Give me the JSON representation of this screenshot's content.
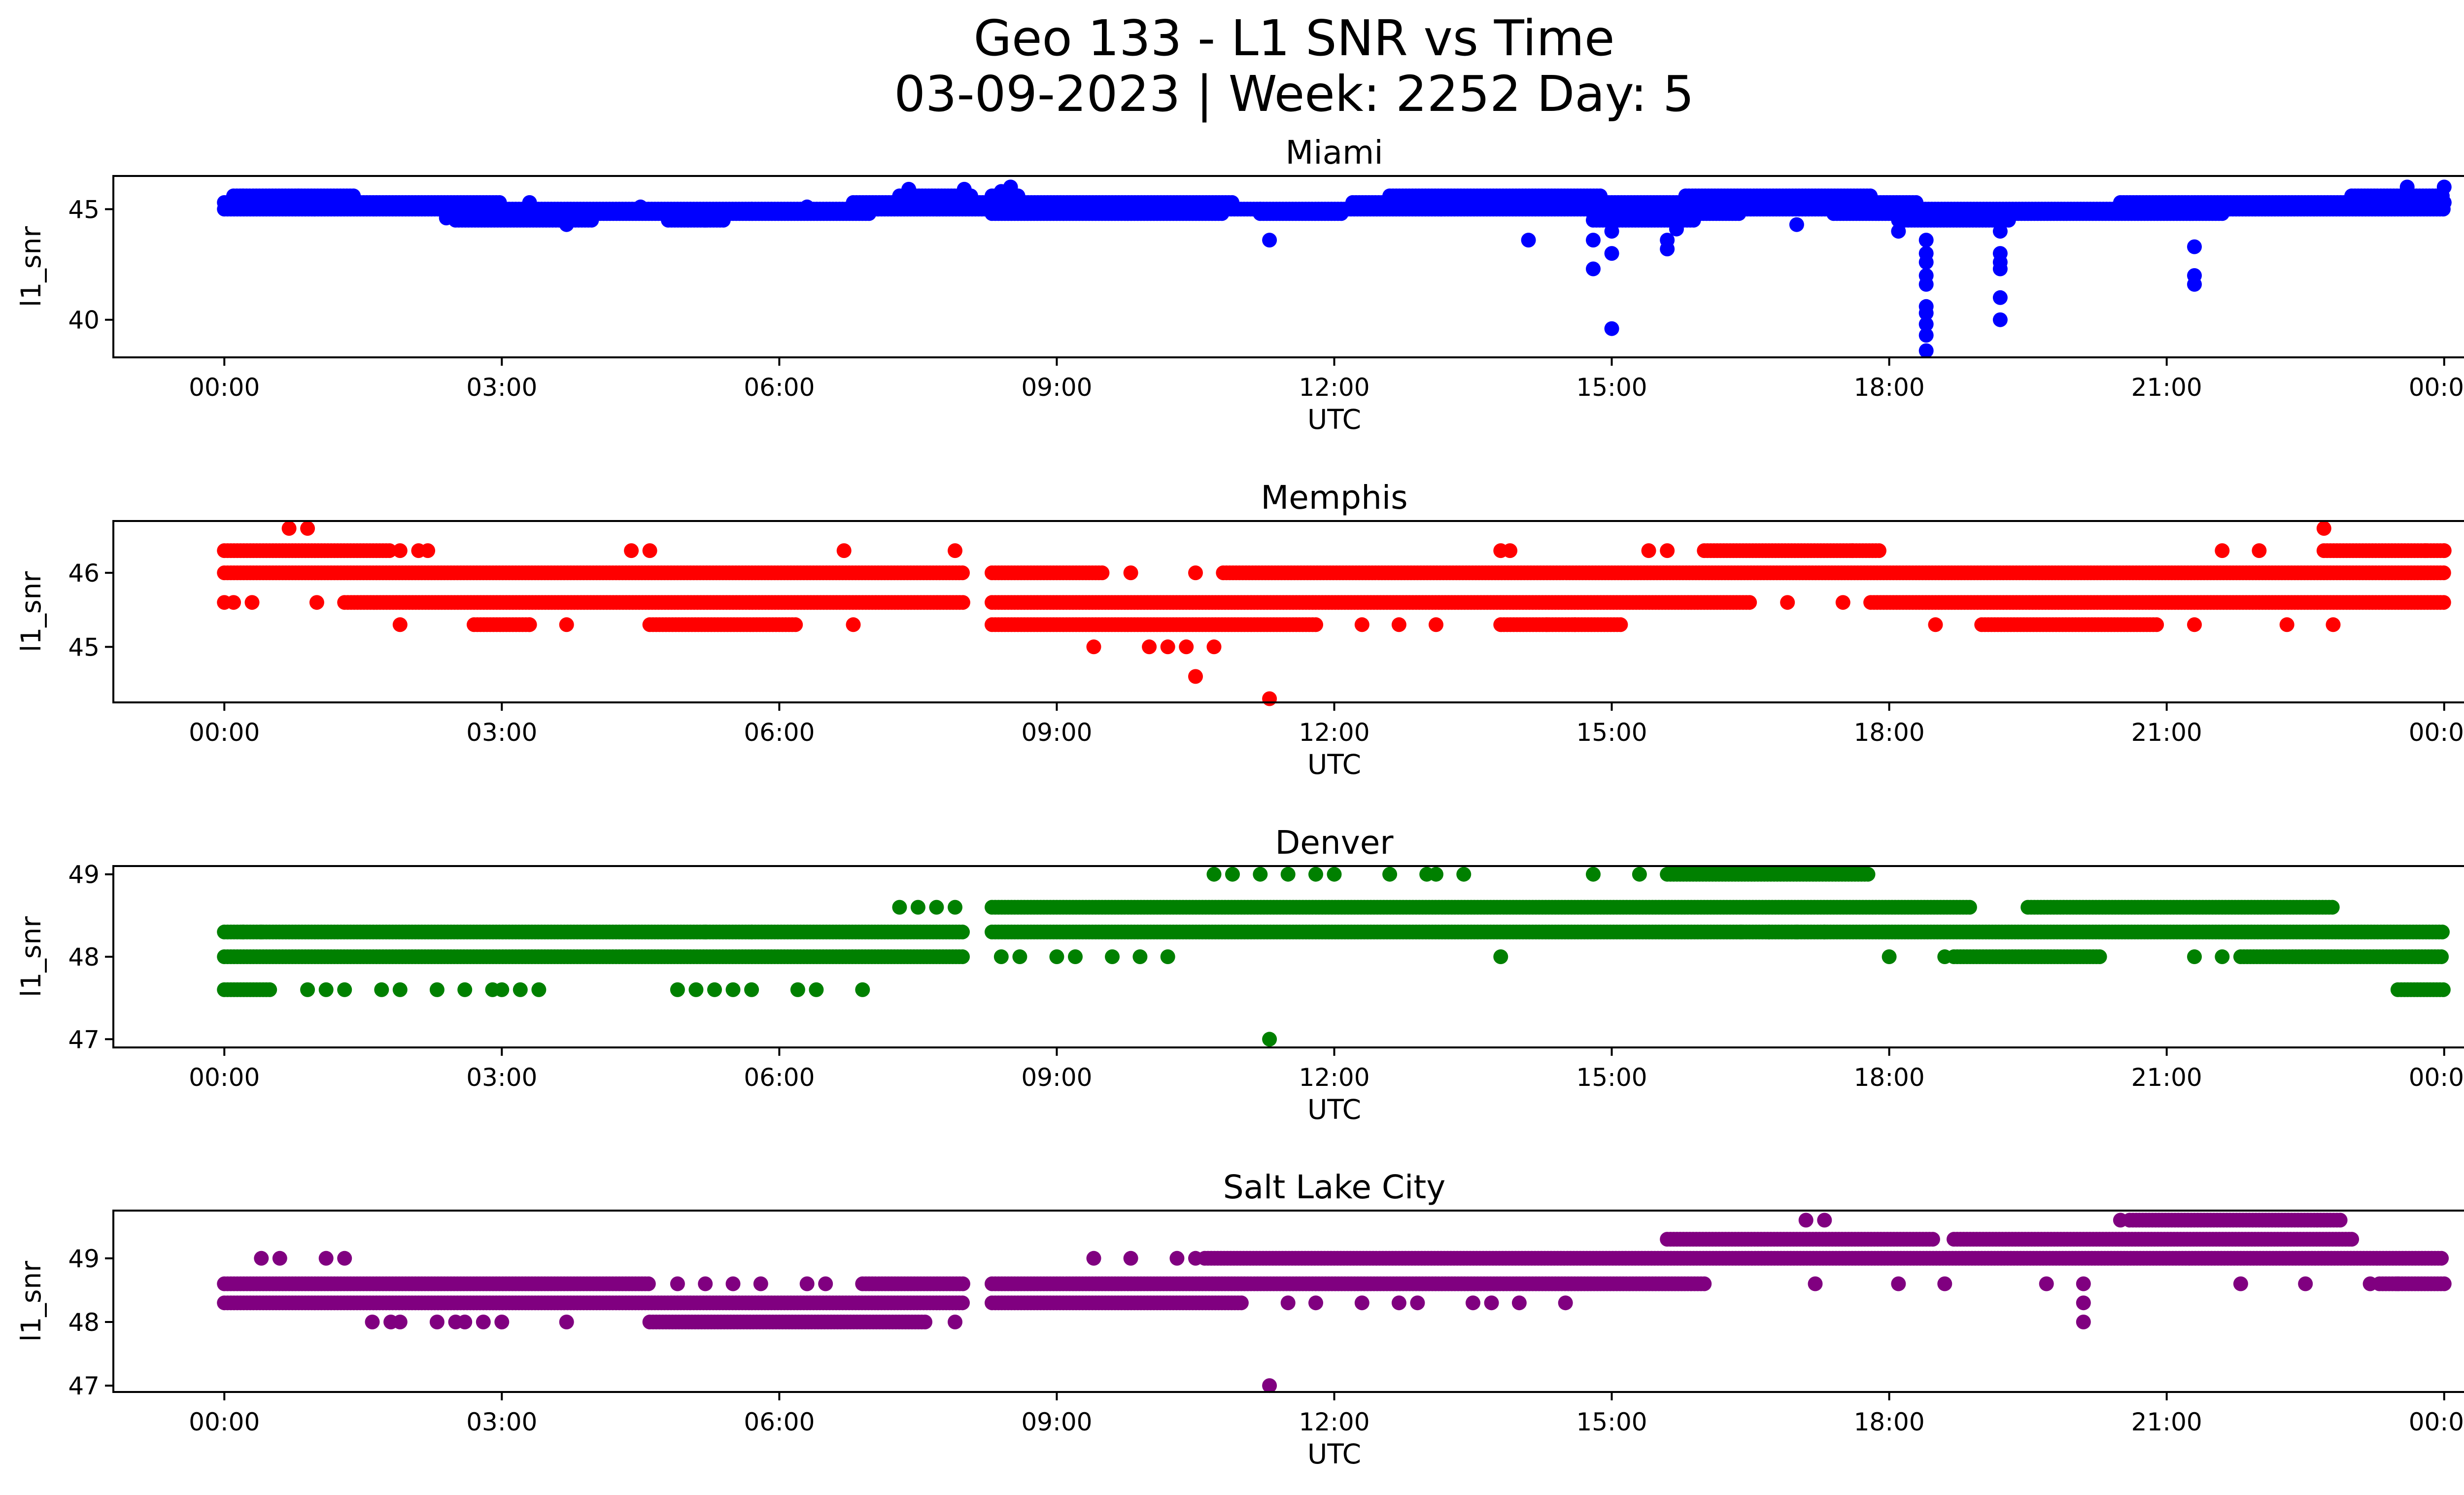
{
  "title_line1": "Geo 133 - L1 SNR vs Time",
  "title_line2": "03-09-2023 | Week: 2252 Day: 5",
  "chart_data": [
    {
      "type": "scatter",
      "title": "Miami",
      "xlabel": "UTC",
      "ylabel": "l1_snr",
      "color": "#0000ff",
      "x_ticks": [
        "00:00",
        "03:00",
        "06:00",
        "09:00",
        "12:00",
        "15:00",
        "18:00",
        "21:00",
        "00:00"
      ],
      "x_range_hours": [
        -1.2,
        25.2
      ],
      "y_ticks": [
        40,
        45
      ],
      "ylim": [
        38.3,
        46.5
      ],
      "levels": [
        {
          "y": 45.6,
          "spans": [
            [
              0.1,
              1.4
            ],
            [
              7.3,
              8.1
            ],
            [
              8.3,
              8.6
            ],
            [
              12.6,
              14.9
            ],
            [
              15.8,
              17.8
            ],
            [
              23.0,
              24.0
            ]
          ]
        },
        {
          "y": 45.3,
          "spans": [
            [
              0.0,
              3.0
            ],
            [
              6.8,
              10.9
            ],
            [
              12.2,
              18.3
            ],
            [
              20.5,
              24.0
            ]
          ]
        },
        {
          "y": 45.0,
          "spans": [
            [
              0.0,
              15.3
            ],
            [
              15.8,
              24.0
            ]
          ]
        },
        {
          "y": 44.8,
          "spans": [
            [
              2.7,
              7.0
            ],
            [
              8.3,
              10.8
            ],
            [
              11.2,
              12.1
            ],
            [
              14.8,
              16.4
            ],
            [
              17.4,
              21.6
            ]
          ]
        },
        {
          "y": 44.5,
          "spans": [
            [
              2.5,
              4.0
            ],
            [
              4.8,
              5.4
            ],
            [
              14.8,
              15.9
            ],
            [
              18.1,
              19.3
            ]
          ]
        }
      ],
      "points": [
        [
          0.2,
          45.6
        ],
        [
          0.8,
          45.6
        ],
        [
          2.4,
          44.6
        ],
        [
          3.3,
          45.3
        ],
        [
          3.7,
          44.3
        ],
        [
          4.5,
          45.1
        ],
        [
          5.2,
          44.5
        ],
        [
          5.7,
          45.0
        ],
        [
          6.3,
          45.1
        ],
        [
          7.4,
          45.9
        ],
        [
          7.6,
          45.5
        ],
        [
          8.0,
          45.9
        ],
        [
          8.4,
          45.8
        ],
        [
          8.5,
          46.0
        ],
        [
          11.2,
          45.0
        ],
        [
          11.3,
          43.6
        ],
        [
          12.4,
          45.2
        ],
        [
          14.1,
          43.6
        ],
        [
          14.8,
          42.3
        ],
        [
          14.8,
          43.6
        ],
        [
          15.0,
          39.6
        ],
        [
          15.0,
          43.0
        ],
        [
          15.0,
          44.0
        ],
        [
          15.6,
          43.2
        ],
        [
          15.6,
          43.6
        ],
        [
          15.7,
          44.1
        ],
        [
          15.6,
          44.7
        ],
        [
          17.0,
          44.3
        ],
        [
          18.1,
          44.0
        ],
        [
          18.4,
          38.6
        ],
        [
          18.4,
          39.3
        ],
        [
          18.4,
          39.8
        ],
        [
          18.4,
          40.3
        ],
        [
          18.4,
          40.6
        ],
        [
          18.4,
          41.6
        ],
        [
          18.4,
          42.0
        ],
        [
          18.4,
          42.6
        ],
        [
          18.4,
          43.0
        ],
        [
          18.4,
          43.6
        ],
        [
          19.2,
          40.0
        ],
        [
          19.2,
          41.0
        ],
        [
          19.2,
          42.3
        ],
        [
          19.2,
          42.6
        ],
        [
          19.2,
          43.0
        ],
        [
          19.2,
          44.0
        ],
        [
          21.3,
          41.6
        ],
        [
          21.3,
          42.0
        ],
        [
          21.3,
          43.3
        ],
        [
          23.6,
          46.0
        ],
        [
          24.0,
          46.0
        ],
        [
          24.0,
          45.3
        ]
      ]
    },
    {
      "type": "scatter",
      "title": "Memphis",
      "xlabel": "UTC",
      "ylabel": "l1_snr",
      "color": "#ff0000",
      "x_ticks": [
        "00:00",
        "03:00",
        "06:00",
        "09:00",
        "12:00",
        "15:00",
        "18:00",
        "21:00",
        "00:00"
      ],
      "x_range_hours": [
        -1.2,
        25.2
      ],
      "y_ticks": [
        45,
        46
      ],
      "ylim": [
        44.25,
        46.7
      ],
      "levels": [
        {
          "y": 46.3,
          "spans": [
            [
              0.0,
              1.8
            ],
            [
              16.0,
              17.9
            ],
            [
              22.7,
              24.0
            ]
          ]
        },
        {
          "y": 46.0,
          "spans": [
            [
              0.0,
              8.0
            ],
            [
              8.3,
              9.5
            ],
            [
              10.8,
              24.0
            ]
          ]
        },
        {
          "y": 45.6,
          "spans": [
            [
              1.3,
              8.0
            ],
            [
              8.3,
              16.5
            ],
            [
              17.8,
              24.0
            ]
          ]
        },
        {
          "y": 45.3,
          "spans": [
            [
              2.7,
              3.3
            ],
            [
              4.6,
              6.2
            ],
            [
              8.3,
              11.8
            ],
            [
              13.8,
              15.1
            ],
            [
              19.0,
              20.9
            ]
          ]
        }
      ],
      "points": [
        [
          0.0,
          45.6
        ],
        [
          0.1,
          45.6
        ],
        [
          0.3,
          45.6
        ],
        [
          0.7,
          46.6
        ],
        [
          0.9,
          46.6
        ],
        [
          1.0,
          45.6
        ],
        [
          1.9,
          45.3
        ],
        [
          1.9,
          46.3
        ],
        [
          2.1,
          46.3
        ],
        [
          2.2,
          46.3
        ],
        [
          3.3,
          45.3
        ],
        [
          3.7,
          45.3
        ],
        [
          4.4,
          46.3
        ],
        [
          4.6,
          46.3
        ],
        [
          6.7,
          46.3
        ],
        [
          6.8,
          45.3
        ],
        [
          7.9,
          46.3
        ],
        [
          9.4,
          45.0
        ],
        [
          9.8,
          46.0
        ],
        [
          10.0,
          45.0
        ],
        [
          10.2,
          45.0
        ],
        [
          10.4,
          45.0
        ],
        [
          10.5,
          44.6
        ],
        [
          10.7,
          45.0
        ],
        [
          10.5,
          46.0
        ],
        [
          11.3,
          44.3
        ],
        [
          12.3,
          45.3
        ],
        [
          12.7,
          45.3
        ],
        [
          13.1,
          45.3
        ],
        [
          13.8,
          46.3
        ],
        [
          13.9,
          46.3
        ],
        [
          14.3,
          45.3
        ],
        [
          14.6,
          45.3
        ],
        [
          15.4,
          46.3
        ],
        [
          15.6,
          46.3
        ],
        [
          16.9,
          45.6
        ],
        [
          17.5,
          45.6
        ],
        [
          17.6,
          46.3
        ],
        [
          18.5,
          45.3
        ],
        [
          21.3,
          45.3
        ],
        [
          21.6,
          46.3
        ],
        [
          22.0,
          46.3
        ],
        [
          22.3,
          45.3
        ],
        [
          22.7,
          46.6
        ],
        [
          22.8,
          45.3
        ],
        [
          23.8,
          46.3
        ],
        [
          24.0,
          46.3
        ]
      ]
    },
    {
      "type": "scatter",
      "title": "Denver",
      "xlabel": "UTC",
      "ylabel": "l1_snr",
      "color": "#008000",
      "x_ticks": [
        "00:00",
        "03:00",
        "06:00",
        "09:00",
        "12:00",
        "15:00",
        "18:00",
        "21:00",
        "00:00"
      ],
      "x_range_hours": [
        -1.2,
        25.2
      ],
      "y_ticks": [
        47,
        48,
        49
      ],
      "ylim": [
        46.9,
        49.1
      ],
      "levels": [
        {
          "y": 49.0,
          "spans": [
            [
              15.6,
              17.8
            ]
          ]
        },
        {
          "y": 48.6,
          "spans": [
            [
              8.3,
              18.9
            ],
            [
              19.5,
              22.8
            ]
          ]
        },
        {
          "y": 48.3,
          "spans": [
            [
              0.0,
              8.0
            ],
            [
              8.3,
              24.0
            ]
          ]
        },
        {
          "y": 48.0,
          "spans": [
            [
              0.0,
              8.0
            ],
            [
              18.7,
              20.3
            ],
            [
              21.8,
              24.0
            ]
          ]
        },
        {
          "y": 47.6,
          "spans": [
            [
              0.0,
              0.5
            ],
            [
              23.5,
              24.0
            ]
          ]
        }
      ],
      "points": [
        [
          0.2,
          48.3
        ],
        [
          0.4,
          48.3
        ],
        [
          0.9,
          47.6
        ],
        [
          1.1,
          47.6
        ],
        [
          1.3,
          47.6
        ],
        [
          1.7,
          47.6
        ],
        [
          1.9,
          47.6
        ],
        [
          2.3,
          47.6
        ],
        [
          2.6,
          47.6
        ],
        [
          2.9,
          47.6
        ],
        [
          3.0,
          47.6
        ],
        [
          3.2,
          47.6
        ],
        [
          3.4,
          47.6
        ],
        [
          4.9,
          47.6
        ],
        [
          5.1,
          47.6
        ],
        [
          5.3,
          47.6
        ],
        [
          5.5,
          47.6
        ],
        [
          5.7,
          47.6
        ],
        [
          6.2,
          47.6
        ],
        [
          6.4,
          47.6
        ],
        [
          6.9,
          47.6
        ],
        [
          5.2,
          48.3
        ],
        [
          5.7,
          48.3
        ],
        [
          7.3,
          48.6
        ],
        [
          7.5,
          48.6
        ],
        [
          7.7,
          48.6
        ],
        [
          7.9,
          48.6
        ],
        [
          8.4,
          48.0
        ],
        [
          8.6,
          48.0
        ],
        [
          9.0,
          48.0
        ],
        [
          9.2,
          48.0
        ],
        [
          9.6,
          48.0
        ],
        [
          9.9,
          48.0
        ],
        [
          10.2,
          48.0
        ],
        [
          10.7,
          49.0
        ],
        [
          10.9,
          49.0
        ],
        [
          11.2,
          49.0
        ],
        [
          11.5,
          49.0
        ],
        [
          11.8,
          49.0
        ],
        [
          12.0,
          49.0
        ],
        [
          11.3,
          47.0
        ],
        [
          12.6,
          49.0
        ],
        [
          13.0,
          49.0
        ],
        [
          13.1,
          49.0
        ],
        [
          13.4,
          49.0
        ],
        [
          13.8,
          48.0
        ],
        [
          14.8,
          49.0
        ],
        [
          15.3,
          49.0
        ],
        [
          16.4,
          48.3
        ],
        [
          16.7,
          48.3
        ],
        [
          17.0,
          48.3
        ],
        [
          17.3,
          48.3
        ],
        [
          18.0,
          48.0
        ],
        [
          18.6,
          48.0
        ],
        [
          21.3,
          48.0
        ],
        [
          21.6,
          48.0
        ]
      ]
    },
    {
      "type": "scatter",
      "title": "Salt Lake City",
      "xlabel": "UTC",
      "ylabel": "l1_snr",
      "color": "#800080",
      "x_ticks": [
        "00:00",
        "03:00",
        "06:00",
        "09:00",
        "12:00",
        "15:00",
        "18:00",
        "21:00",
        "00:00"
      ],
      "x_range_hours": [
        -1.2,
        25.2
      ],
      "y_ticks": [
        47,
        48,
        49
      ],
      "ylim": [
        46.9,
        49.75
      ],
      "levels": [
        {
          "y": 49.6,
          "spans": [
            [
              20.6,
              22.9
            ]
          ]
        },
        {
          "y": 49.3,
          "spans": [
            [
              15.6,
              18.5
            ],
            [
              18.7,
              23.0
            ]
          ]
        },
        {
          "y": 49.0,
          "spans": [
            [
              10.6,
              24.0
            ]
          ]
        },
        {
          "y": 48.6,
          "spans": [
            [
              0.0,
              4.6
            ],
            [
              6.9,
              8.0
            ],
            [
              8.3,
              16.0
            ],
            [
              23.3,
              24.0
            ]
          ]
        },
        {
          "y": 48.3,
          "spans": [
            [
              0.0,
              8.0
            ],
            [
              8.3,
              11.0
            ]
          ]
        },
        {
          "y": 48.0,
          "spans": [
            [
              4.6,
              7.6
            ]
          ]
        }
      ],
      "points": [
        [
          0.4,
          49.0
        ],
        [
          0.6,
          49.0
        ],
        [
          1.1,
          49.0
        ],
        [
          1.3,
          49.0
        ],
        [
          1.6,
          48.0
        ],
        [
          1.8,
          48.0
        ],
        [
          1.9,
          48.0
        ],
        [
          2.3,
          48.0
        ],
        [
          2.5,
          48.0
        ],
        [
          2.6,
          48.0
        ],
        [
          2.8,
          48.0
        ],
        [
          3.0,
          48.0
        ],
        [
          3.7,
          48.0
        ],
        [
          4.9,
          48.6
        ],
        [
          5.2,
          48.6
        ],
        [
          5.5,
          48.6
        ],
        [
          5.8,
          48.6
        ],
        [
          6.3,
          48.6
        ],
        [
          6.5,
          48.6
        ],
        [
          7.9,
          48.0
        ],
        [
          9.4,
          49.0
        ],
        [
          9.8,
          49.0
        ],
        [
          10.3,
          49.0
        ],
        [
          10.5,
          49.0
        ],
        [
          11.3,
          47.0
        ],
        [
          11.5,
          48.3
        ],
        [
          11.8,
          48.3
        ],
        [
          12.3,
          48.3
        ],
        [
          12.7,
          48.3
        ],
        [
          12.9,
          48.3
        ],
        [
          13.5,
          48.3
        ],
        [
          13.7,
          48.3
        ],
        [
          14.0,
          48.3
        ],
        [
          14.5,
          48.3
        ],
        [
          17.1,
          49.6
        ],
        [
          17.3,
          49.6
        ],
        [
          17.2,
          48.6
        ],
        [
          18.1,
          48.6
        ],
        [
          18.6,
          48.6
        ],
        [
          19.7,
          48.6
        ],
        [
          20.1,
          48.0
        ],
        [
          20.1,
          48.3
        ],
        [
          20.1,
          48.6
        ],
        [
          20.5,
          49.6
        ],
        [
          21.8,
          48.6
        ],
        [
          22.5,
          48.6
        ],
        [
          23.0,
          49.3
        ],
        [
          23.2,
          48.6
        ],
        [
          23.5,
          48.6
        ]
      ]
    }
  ]
}
